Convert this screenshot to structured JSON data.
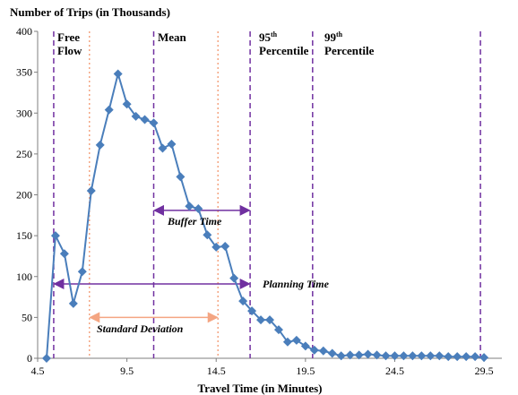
{
  "chart_data": {
    "type": "line",
    "title": "Number of Trips (in Thousands)",
    "xlabel": "Travel Time (in Minutes)",
    "ylabel": "",
    "xlim": [
      4.5,
      30.5
    ],
    "ylim": [
      0,
      400
    ],
    "xticks": [
      4.5,
      9.5,
      14.5,
      19.5,
      24.5,
      29.5
    ],
    "xtick_labels": [
      "4.5",
      "9.5",
      "14.5",
      "19.5",
      "24.5",
      "29.5"
    ],
    "yticks": [
      0,
      50,
      100,
      150,
      200,
      250,
      300,
      350,
      400
    ],
    "ytick_labels": [
      "0",
      "50",
      "100",
      "150",
      "200",
      "250",
      "300",
      "350",
      "400"
    ],
    "grid": false,
    "series": [
      {
        "color": "#4a7ebb",
        "marker": "diamond",
        "x": [
          5.0,
          5.5,
          6.0,
          6.5,
          7.0,
          7.5,
          8.0,
          8.5,
          9.0,
          9.5,
          10.0,
          10.5,
          11.0,
          11.5,
          12.0,
          12.5,
          13.0,
          13.5,
          14.0,
          14.5,
          15.0,
          15.5,
          16.0,
          16.5,
          17.0,
          17.5,
          18.0,
          18.5,
          19.0,
          19.5,
          20.0,
          20.5,
          21.0,
          21.5,
          22.0,
          22.5,
          23.0,
          23.5,
          24.0,
          24.5,
          25.0,
          25.5,
          26.0,
          26.5,
          27.0,
          27.5,
          28.0,
          28.5,
          29.0,
          29.5
        ],
        "values": [
          0,
          150,
          128,
          67,
          106,
          205,
          261,
          304,
          348,
          311,
          296,
          292,
          288,
          257,
          262,
          222,
          186,
          183,
          151,
          136,
          137,
          98,
          70,
          58,
          47,
          47,
          35,
          20,
          22,
          15,
          10,
          9,
          6,
          3,
          4,
          4,
          5,
          4,
          3,
          3,
          3,
          3,
          3,
          3,
          3,
          2,
          2,
          2,
          2,
          1
        ]
      }
    ],
    "vertical_lines": [
      {
        "x": 5.4,
        "style": "dashed",
        "color": "#7030a0"
      },
      {
        "x": 7.4,
        "style": "dotted",
        "color": "#f4a582"
      },
      {
        "x": 11.0,
        "style": "dashed",
        "color": "#7030a0"
      },
      {
        "x": 14.6,
        "style": "dotted",
        "color": "#f4a582"
      },
      {
        "x": 16.4,
        "style": "dashed",
        "color": "#7030a0"
      },
      {
        "x": 19.9,
        "style": "dashed",
        "color": "#7030a0"
      },
      {
        "x": 29.3,
        "style": "dashed",
        "color": "#7030a0"
      }
    ],
    "labels": {
      "free_flow_1": "Free",
      "free_flow_2": "Flow",
      "mean": "Mean",
      "p95_num": "95",
      "p95_sup": "th",
      "p95_word": "Percentile",
      "p99_num": "99",
      "p99_sup": "th",
      "p99_word": "Percentile"
    },
    "annotations": [
      {
        "text": "Buffer Time",
        "from": 11.0,
        "to": 16.4,
        "y": 181,
        "color": "#7030a0"
      },
      {
        "text": "Planning Time",
        "from": 5.4,
        "to": 16.4,
        "y": 91,
        "color": "#7030a0"
      },
      {
        "text": "Standard Deviation",
        "from": 7.4,
        "to": 14.6,
        "y": 50,
        "color": "#f4a582"
      }
    ]
  }
}
